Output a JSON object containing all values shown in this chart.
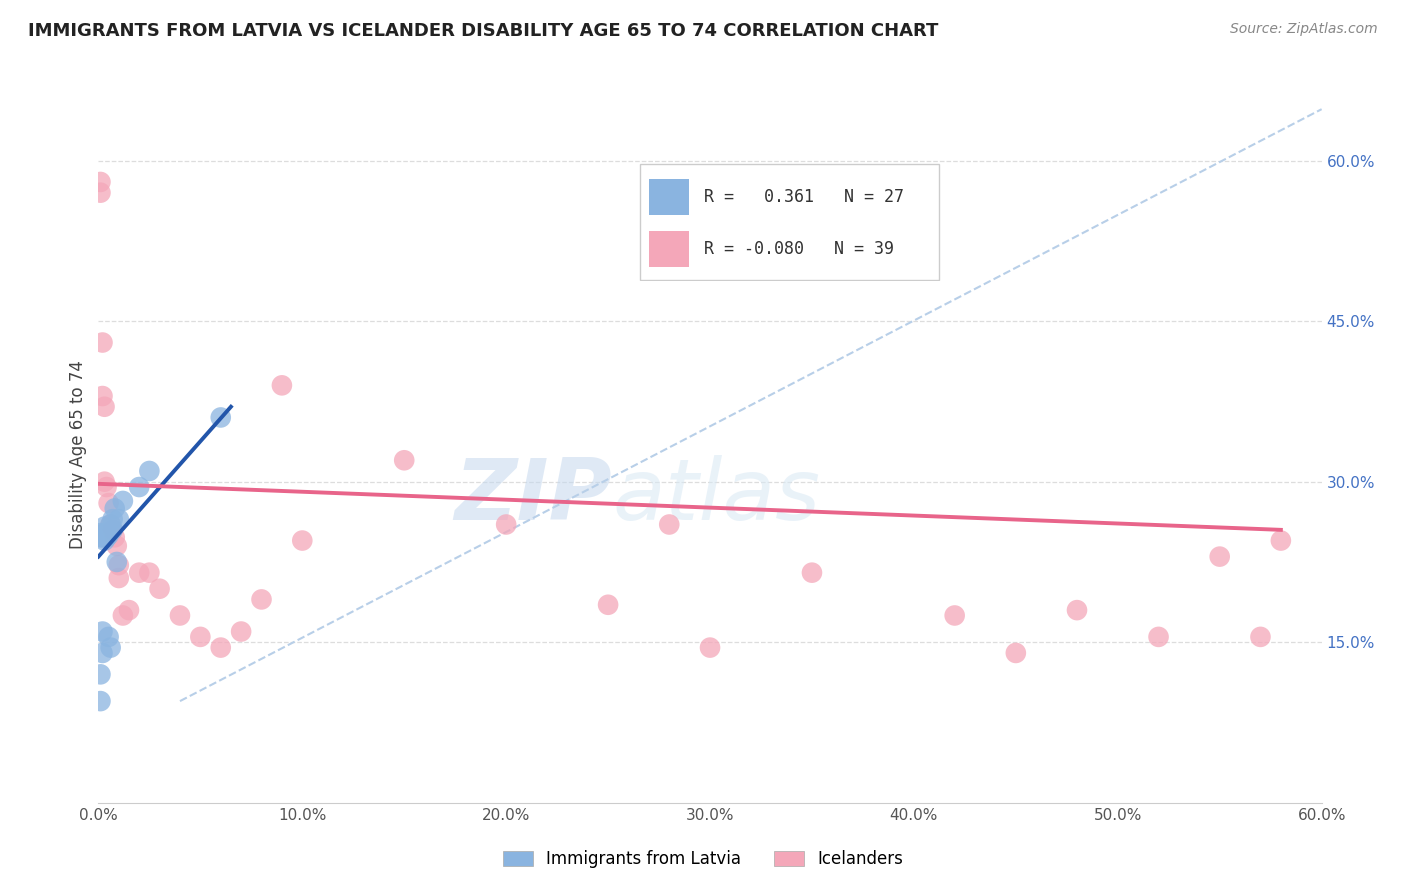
{
  "title": "IMMIGRANTS FROM LATVIA VS ICELANDER DISABILITY AGE 65 TO 74 CORRELATION CHART",
  "source": "Source: ZipAtlas.com",
  "ylabel": "Disability Age 65 to 74",
  "xlim": [
    0.0,
    0.6
  ],
  "ylim": [
    0.0,
    0.65
  ],
  "xtick_labels": [
    "0.0%",
    "10.0%",
    "20.0%",
    "30.0%",
    "40.0%",
    "50.0%",
    "60.0%"
  ],
  "xtick_vals": [
    0.0,
    0.1,
    0.2,
    0.3,
    0.4,
    0.5,
    0.6
  ],
  "ytick_labels_right": [
    "15.0%",
    "30.0%",
    "45.0%",
    "60.0%"
  ],
  "ytick_vals_right": [
    0.15,
    0.3,
    0.45,
    0.6
  ],
  "blue_R": 0.361,
  "blue_N": 27,
  "pink_R": -0.08,
  "pink_N": 39,
  "blue_color": "#8ab4e0",
  "pink_color": "#f4a7b9",
  "blue_line_color": "#2255aa",
  "pink_line_color": "#e8648a",
  "diagonal_color": "#b8cfe8",
  "watermark_zip": "ZIP",
  "watermark_atlas": "atlas",
  "blue_scatter_x": [
    0.001,
    0.001,
    0.001,
    0.001,
    0.001,
    0.002,
    0.002,
    0.002,
    0.002,
    0.003,
    0.003,
    0.003,
    0.004,
    0.004,
    0.005,
    0.005,
    0.006,
    0.006,
    0.007,
    0.007,
    0.008,
    0.009,
    0.01,
    0.012,
    0.02,
    0.025,
    0.06
  ],
  "blue_scatter_y": [
    0.248,
    0.25,
    0.252,
    0.095,
    0.12,
    0.14,
    0.16,
    0.248,
    0.25,
    0.245,
    0.252,
    0.258,
    0.248,
    0.25,
    0.25,
    0.155,
    0.26,
    0.145,
    0.255,
    0.265,
    0.275,
    0.225,
    0.265,
    0.282,
    0.295,
    0.31,
    0.36
  ],
  "pink_scatter_x": [
    0.001,
    0.001,
    0.002,
    0.002,
    0.003,
    0.003,
    0.004,
    0.005,
    0.006,
    0.007,
    0.008,
    0.009,
    0.01,
    0.01,
    0.012,
    0.015,
    0.02,
    0.025,
    0.03,
    0.04,
    0.05,
    0.06,
    0.07,
    0.08,
    0.09,
    0.1,
    0.15,
    0.2,
    0.25,
    0.28,
    0.3,
    0.35,
    0.42,
    0.45,
    0.48,
    0.52,
    0.55,
    0.57,
    0.58
  ],
  "pink_scatter_y": [
    0.58,
    0.57,
    0.43,
    0.38,
    0.37,
    0.3,
    0.295,
    0.28,
    0.26,
    0.255,
    0.248,
    0.24,
    0.222,
    0.21,
    0.175,
    0.18,
    0.215,
    0.215,
    0.2,
    0.175,
    0.155,
    0.145,
    0.16,
    0.19,
    0.39,
    0.245,
    0.32,
    0.26,
    0.185,
    0.26,
    0.145,
    0.215,
    0.175,
    0.14,
    0.18,
    0.155,
    0.23,
    0.155,
    0.245
  ],
  "blue_line_x0": 0.0,
  "blue_line_x1": 0.065,
  "blue_line_y0": 0.23,
  "blue_line_y1": 0.37,
  "pink_line_x0": 0.0,
  "pink_line_x1": 0.58,
  "pink_line_y0": 0.298,
  "pink_line_y1": 0.255,
  "diag_line_x0": 0.04,
  "diag_line_x1": 0.6,
  "diag_line_y0": 0.095,
  "diag_line_y1": 0.648
}
